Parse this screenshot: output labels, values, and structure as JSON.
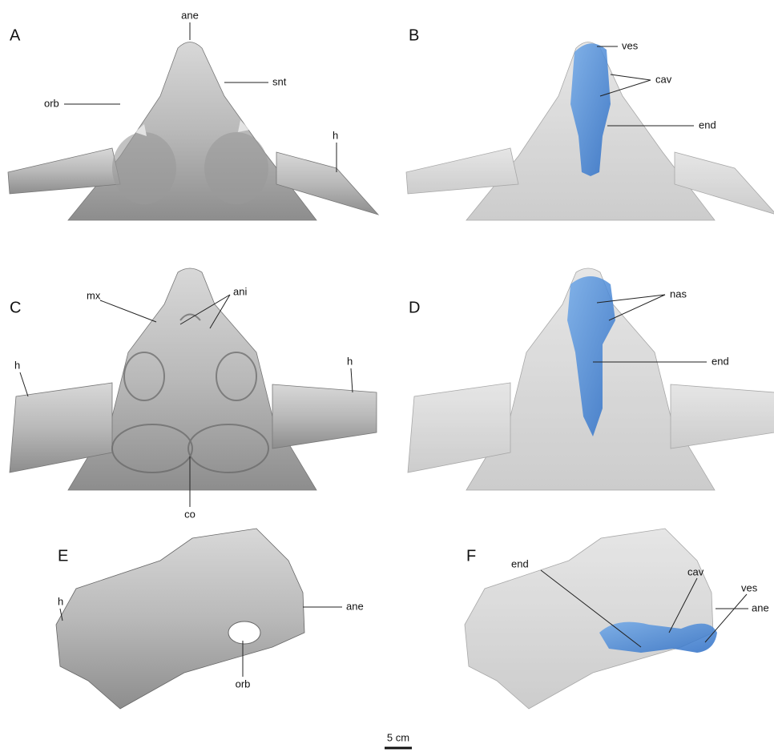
{
  "panels": [
    {
      "letter": "A",
      "labels": [
        "ane",
        "snt",
        "orb",
        "h"
      ]
    },
    {
      "letter": "B",
      "labels": [
        "ves",
        "cav",
        "end"
      ]
    },
    {
      "letter": "C",
      "labels": [
        "mx",
        "ani",
        "h",
        "h",
        "co"
      ]
    },
    {
      "letter": "D",
      "labels": [
        "nas",
        "end"
      ]
    },
    {
      "letter": "E",
      "labels": [
        "h",
        "ane",
        "orb"
      ]
    },
    {
      "letter": "F",
      "labels": [
        "end",
        "cav",
        "ves",
        "ane"
      ]
    }
  ],
  "scale_bar": "5 cm"
}
